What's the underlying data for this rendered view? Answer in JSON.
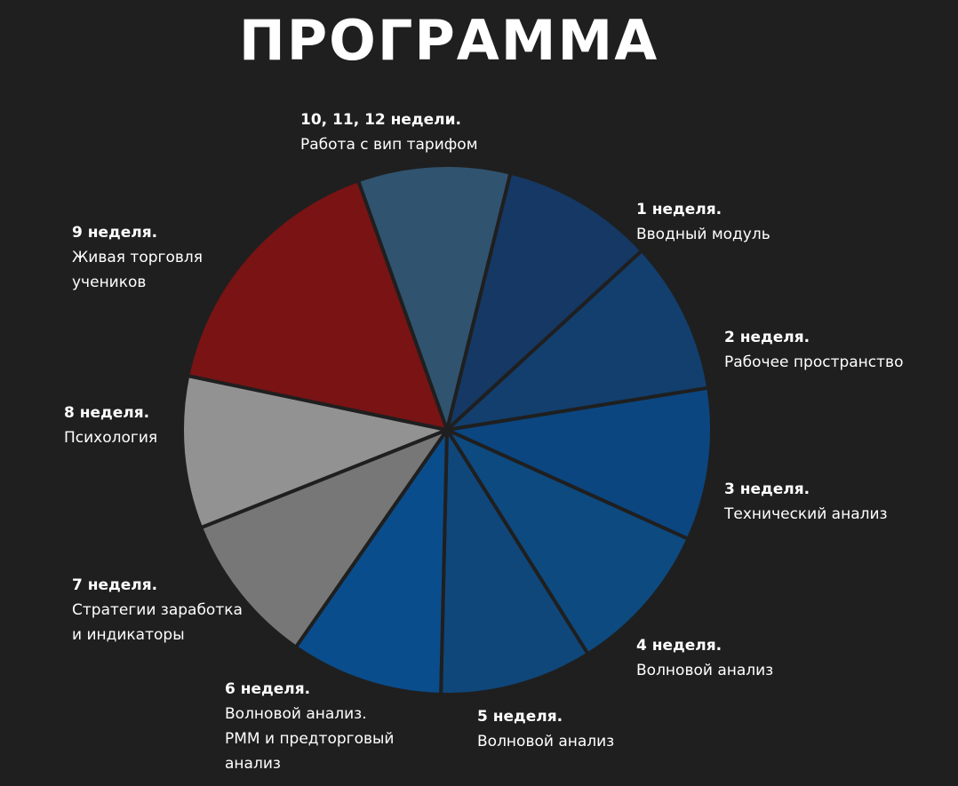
{
  "title": "ПРОГРАММА",
  "chart_data": {
    "type": "pie",
    "title": "ПРОГРАММА",
    "start_angle_deg": -19.6,
    "slices": [
      {
        "week": "1 неделя.",
        "lines": [
          "Вводный модуль"
        ],
        "value": 1,
        "color": "#30536f"
      },
      {
        "week": "2 неделя.",
        "lines": [
          "Рабочее пространство"
        ],
        "value": 1,
        "color": "#153864"
      },
      {
        "week": "3 неделя.",
        "lines": [
          "Технический анализ"
        ],
        "value": 1,
        "color": "#123f6e"
      },
      {
        "week": "4 неделя.",
        "lines": [
          "Волновой анализ"
        ],
        "value": 1,
        "color": "#0b4680"
      },
      {
        "week": "5 неделя.",
        "lines": [
          "Волновой анализ"
        ],
        "value": 1,
        "color": "#0d4a80"
      },
      {
        "week": "6 неделя.",
        "lines": [
          "Волновой анализ.",
          "РММ и предторговый",
          "анализ"
        ],
        "value": 1,
        "color": "#0f477b"
      },
      {
        "week": "7 неделя.",
        "lines": [
          "Стратегии заработка",
          "и индикаторы"
        ],
        "value": 1,
        "color": "#0a4d8c"
      },
      {
        "week": "8 неделя.",
        "lines": [
          "Психология"
        ],
        "value": 1,
        "color": "#777777"
      },
      {
        "week": "9 неделя.",
        "lines": [
          "Живая торговля",
          "учеников"
        ],
        "value": 1,
        "color": "#929292"
      },
      {
        "week": "10, 11, 12 недели.",
        "lines": [
          "Работа с вип тарифом"
        ],
        "value": 1.75,
        "color": "#791314"
      }
    ]
  }
}
